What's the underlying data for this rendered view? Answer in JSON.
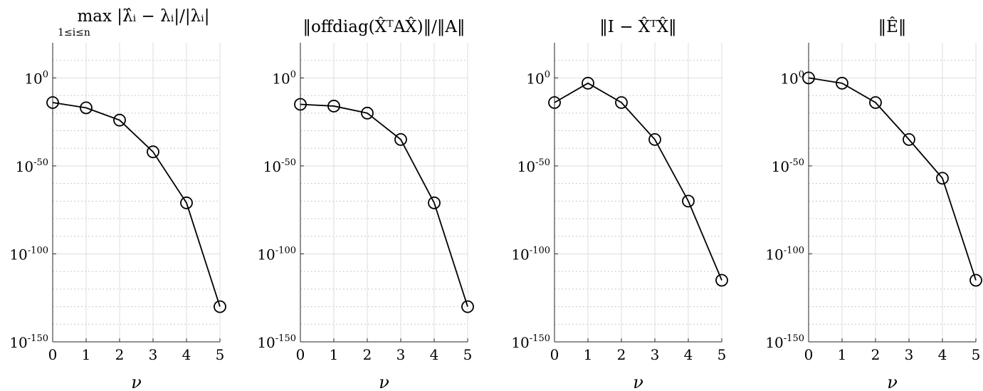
{
  "chart_data": [
    {
      "type": "line",
      "title": "max |λ̂ᵢ − λᵢ|/|λᵢ|",
      "title_subscript": "1≤i≤n",
      "xlabel": "ν",
      "ylabel": "",
      "yscale": "log",
      "x": [
        0,
        1,
        2,
        3,
        4,
        5
      ],
      "y": [
        1e-14,
        1e-17,
        1e-24,
        1e-42,
        1e-71,
        1e-130
      ],
      "xlim": [
        0,
        5
      ],
      "ylim_exponent": [
        -150,
        20
      ],
      "xticks": [
        "0",
        "1",
        "2",
        "3",
        "4",
        "5"
      ],
      "ytick_exponents": [
        "0",
        "-50",
        "-100",
        "-150"
      ],
      "grid": true,
      "marker": "open-circle"
    },
    {
      "type": "line",
      "title": "‖offdiag(X̂ᵀAX̂)‖/‖A‖",
      "xlabel": "ν",
      "ylabel": "",
      "yscale": "log",
      "x": [
        0,
        1,
        2,
        3,
        4,
        5
      ],
      "y": [
        1e-15,
        1e-16,
        1e-20,
        1e-35,
        1e-71,
        1e-130
      ],
      "xlim": [
        0,
        5
      ],
      "ylim_exponent": [
        -150,
        20
      ],
      "xticks": [
        "0",
        "1",
        "2",
        "3",
        "4",
        "5"
      ],
      "ytick_exponents": [
        "0",
        "-50",
        "-100",
        "-150"
      ],
      "grid": true,
      "marker": "open-circle"
    },
    {
      "type": "line",
      "title": "‖I − X̂ᵀX̂‖",
      "xlabel": "ν",
      "ylabel": "",
      "yscale": "log",
      "x": [
        0,
        1,
        2,
        3,
        4,
        5
      ],
      "y": [
        1e-14,
        0.001,
        1e-14,
        1e-35,
        1e-70,
        1e-115
      ],
      "xlim": [
        0,
        5
      ],
      "ylim_exponent": [
        -150,
        20
      ],
      "xticks": [
        "0",
        "1",
        "2",
        "3",
        "4",
        "5"
      ],
      "ytick_exponents": [
        "0",
        "-50",
        "-100",
        "-150"
      ],
      "grid": true,
      "marker": "open-circle"
    },
    {
      "type": "line",
      "title": "‖Ê‖",
      "xlabel": "ν",
      "ylabel": "",
      "yscale": "log",
      "x": [
        0,
        1,
        2,
        3,
        4,
        5
      ],
      "y": [
        1.0,
        0.001,
        1e-14,
        1e-35,
        1e-57,
        1e-115
      ],
      "xlim": [
        0,
        5
      ],
      "ylim_exponent": [
        -150,
        20
      ],
      "xticks": [
        "0",
        "1",
        "2",
        "3",
        "4",
        "5"
      ],
      "ytick_exponents": [
        "0",
        "-50",
        "-100",
        "-150"
      ],
      "grid": true,
      "marker": "open-circle"
    }
  ]
}
